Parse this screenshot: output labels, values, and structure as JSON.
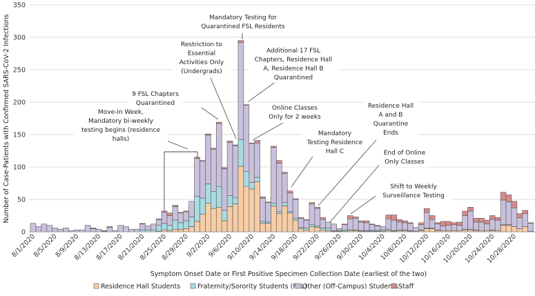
{
  "chart_data": {
    "type": "bar",
    "stacked": true,
    "xlabel": "Symptom Onset Date or First Positive Specimen Collection Date (earliest of the two)",
    "ylabel": "Number of Case-Patients with Confirmed SARS-CoV-2 Infections",
    "ylim": [
      0,
      350
    ],
    "yticks": [
      "0",
      "50",
      "100",
      "150",
      "200",
      "250",
      "300",
      "350"
    ],
    "grid": true,
    "legend_position": "bottom",
    "categories": [
      "8/1/2020",
      "8/2/2020",
      "8/3/2020",
      "8/4/2020",
      "8/5/2020",
      "8/6/2020",
      "8/7/2020",
      "8/8/2020",
      "8/9/2020",
      "8/10/2020",
      "8/11/2020",
      "8/12/2020",
      "8/13/2020",
      "8/14/2020",
      "8/15/2020",
      "8/16/2020",
      "8/17/2020",
      "8/18/2020",
      "8/19/2020",
      "8/20/2020",
      "8/21/2020",
      "8/22/2020",
      "8/23/2020",
      "8/24/2020",
      "8/25/2020",
      "8/26/2020",
      "8/27/2020",
      "8/28/2020",
      "8/29/2020",
      "8/30/2020",
      "8/31/2020",
      "9/1/2020",
      "9/2/2020",
      "9/3/2020",
      "9/4/2020",
      "9/5/2020",
      "9/6/2020",
      "9/7/2020",
      "9/8/2020",
      "9/9/2020",
      "9/10/2020",
      "9/11/2020",
      "9/12/2020",
      "9/13/2020",
      "9/14/2020",
      "9/15/2020",
      "9/16/2020",
      "9/17/2020",
      "9/18/2020",
      "9/19/2020",
      "9/20/2020",
      "9/21/2020",
      "9/22/2020",
      "9/23/2020",
      "9/24/2020",
      "9/25/2020",
      "9/26/2020",
      "9/27/2020",
      "9/28/2020",
      "9/29/2020",
      "9/30/2020",
      "10/1/2020",
      "10/2/2020",
      "10/3/2020",
      "10/4/2020",
      "10/5/2020",
      "10/6/2020",
      "10/7/2020",
      "10/8/2020",
      "10/9/2020",
      "10/10/2020",
      "10/11/2020",
      "10/12/2020",
      "10/13/2020",
      "10/14/2020",
      "10/15/2020",
      "10/16/2020",
      "10/17/2020",
      "10/18/2020",
      "10/19/2020",
      "10/20/2020",
      "10/21/2020",
      "10/22/2020",
      "10/23/2020",
      "10/24/2020",
      "10/25/2020",
      "10/26/2020",
      "10/27/2020",
      "10/28/2020",
      "10/29/2020",
      "10/30/2020",
      "10/31/2020"
    ],
    "tick_labels": [
      "8/1/2020",
      "8/5/2020",
      "8/9/2020",
      "8/13/2020",
      "8/17/2020",
      "8/21/2020",
      "8/25/2020",
      "8/29/2020",
      "9/2/2020",
      "9/6/2020",
      "9/10/2020",
      "9/14/2020",
      "9/18/2020",
      "9/22/2020",
      "9/26/2020",
      "9/30/2020",
      "10/4/2020",
      "10/8/2020",
      "10/12/2020",
      "10/16/2020",
      "10/20/2020",
      "10/24/2020",
      "10/28/2020"
    ],
    "series": [
      {
        "name": "Residence Hall Students",
        "color": "#f7cda6",
        "values": [
          0,
          0,
          0,
          0,
          0,
          0,
          0,
          0,
          0,
          0,
          0,
          0,
          0,
          0,
          0,
          0,
          0,
          0,
          0,
          0,
          0,
          0,
          0,
          1,
          3,
          2,
          4,
          4,
          5,
          8,
          16,
          27,
          44,
          36,
          38,
          17,
          39,
          43,
          101,
          70,
          66,
          77,
          13,
          13,
          40,
          28,
          40,
          29,
          18,
          5,
          3,
          8,
          7,
          3,
          2,
          1,
          1,
          1,
          2,
          2,
          1,
          1,
          1,
          1,
          1,
          2,
          1,
          2,
          2,
          1,
          1,
          2,
          5,
          5,
          2,
          2,
          2,
          2,
          2,
          3,
          3,
          2,
          2,
          2,
          2,
          2,
          10,
          10,
          8,
          5,
          8,
          1
        ]
      },
      {
        "name": "Fraternity/Sorority Students (FSL)",
        "color": "#a8dbe2",
        "values": [
          0,
          0,
          0,
          0,
          0,
          0,
          0,
          0,
          0,
          0,
          0,
          0,
          0,
          0,
          0,
          0,
          0,
          0,
          0,
          0,
          3,
          3,
          3,
          9,
          10,
          8,
          14,
          10,
          12,
          15,
          39,
          25,
          30,
          26,
          32,
          16,
          17,
          10,
          41,
          23,
          10,
          7,
          3,
          2,
          4,
          3,
          5,
          2,
          3,
          2,
          3,
          3,
          2,
          3,
          4,
          1,
          1,
          2,
          1,
          1,
          1,
          1,
          1,
          1,
          2,
          2,
          1,
          1,
          1,
          1,
          0,
          1,
          1,
          1,
          1,
          0,
          0,
          0,
          0,
          1,
          1,
          1,
          0,
          0,
          1,
          0,
          1,
          1,
          0,
          0,
          0,
          0
        ]
      },
      {
        "name": "Other (Off-Campus) Students",
        "color": "#c9c1dc",
        "values": [
          13,
          8,
          12,
          10,
          6,
          4,
          6,
          2,
          3,
          3,
          10,
          5,
          4,
          1,
          7,
          2,
          10,
          8,
          4,
          4,
          9,
          6,
          9,
          9,
          17,
          15,
          21,
          15,
          14,
          24,
          58,
          57,
          75,
          65,
          97,
          64,
          82,
          80,
          150,
          102,
          60,
          53,
          36,
          30,
          86,
          75,
          45,
          29,
          29,
          14,
          12,
          32,
          27,
          13,
          9,
          10,
          3,
          8,
          17,
          18,
          13,
          12,
          9,
          7,
          5,
          16,
          16,
          12,
          11,
          11,
          6,
          8,
          24,
          13,
          9,
          7,
          8,
          9,
          8,
          21,
          28,
          12,
          13,
          10,
          16,
          16,
          38,
          35,
          29,
          17,
          20,
          12
        ]
      },
      {
        "name": "Staff",
        "color": "#d88a8c",
        "values": [
          0,
          0,
          0,
          0,
          0,
          0,
          0,
          0,
          0,
          0,
          0,
          1,
          0,
          1,
          1,
          0,
          0,
          0,
          0,
          0,
          1,
          0,
          0,
          1,
          2,
          4,
          2,
          1,
          1,
          0,
          2,
          1,
          2,
          2,
          2,
          2,
          2,
          1,
          3,
          1,
          1,
          4,
          2,
          1,
          2,
          4,
          2,
          3,
          1,
          1,
          1,
          2,
          2,
          3,
          0,
          0,
          0,
          1,
          5,
          2,
          2,
          3,
          1,
          1,
          0,
          6,
          8,
          4,
          3,
          1,
          0,
          3,
          6,
          6,
          2,
          7,
          6,
          3,
          5,
          7,
          6,
          6,
          6,
          6,
          6,
          4,
          12,
          11,
          10,
          6,
          5,
          1
        ]
      }
    ],
    "annotations": [
      "Move-in Week, Mandatory bi-weekly testing begins (residence halls)",
      "9 FSL Chapters Quarantined",
      "Restriction to Essential Activities Only (Undergrads)",
      "Mandatory Testing for Quarantined FSL Residents",
      "Additional 17 FSL Chapters, Residence Hall A, Residence Hall B Quarantined",
      "Online Classes Only for 2 weeks",
      "Mandatory Testing Residence Hall C",
      "Residence Hall A and B Quarantine Ends",
      "End of Online Only Classes",
      "Shift to Weekly Surveillance Testing"
    ]
  }
}
